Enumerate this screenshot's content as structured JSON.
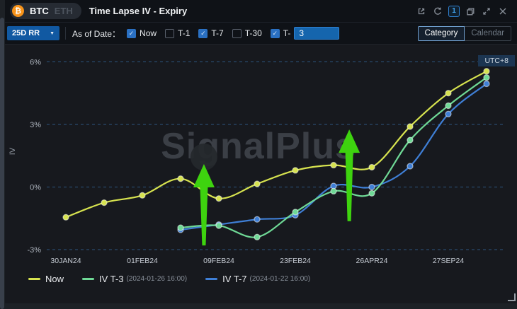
{
  "header": {
    "bitcoin_glyph": "₿",
    "asset_tabs": [
      {
        "label": "BTC",
        "active": true
      },
      {
        "label": "ETH",
        "active": false
      }
    ],
    "title": "Time Lapse IV - Expiry",
    "view_badge": "1"
  },
  "controls": {
    "metric_dropdown": {
      "value": "25D RR"
    },
    "as_of_label": "As of Date：",
    "checkboxes": [
      {
        "label": "Now",
        "checked": true
      },
      {
        "label": "T-1",
        "checked": false
      },
      {
        "label": "T-7",
        "checked": true
      },
      {
        "label": "T-30",
        "checked": false
      },
      {
        "label": "T-",
        "checked": true,
        "input_value": "3"
      }
    ],
    "view_toggle": [
      {
        "label": "Category",
        "active": true
      },
      {
        "label": "Calendar",
        "active": false
      }
    ]
  },
  "chart": {
    "timezone_badge": "UTC+8",
    "watermark": "SignalPlus",
    "y_axis_title": "IV"
  },
  "colors": {
    "accent_blue": "#1565ad",
    "checkbox_blue": "#2a70c2",
    "series_now": "#d7e34f",
    "series_t3": "#6fd996",
    "series_t7": "#3f7fd6",
    "arrow_green": "#3ed30f",
    "grid_blue": "#2c5580",
    "bitcoin_orange": "#f7931a"
  },
  "chart_data": {
    "type": "line",
    "title": "Time Lapse IV - Expiry",
    "ylabel": "IV",
    "unit": "%",
    "grid": true,
    "legend_position": "bottom-left",
    "ylim": [
      -3.4,
      6.4
    ],
    "y_ticks": [
      {
        "label": "6%",
        "value": 6
      },
      {
        "label": "3%",
        "value": 3
      },
      {
        "label": "0%",
        "value": 0
      },
      {
        "label": "-3%",
        "value": -3
      }
    ],
    "num_points": 12,
    "x_ticks": [
      {
        "label": "30JAN24",
        "index": 0
      },
      {
        "label": "01FEB24",
        "index": 2
      },
      {
        "label": "09FEB24",
        "index": 4
      },
      {
        "label": "23FEB24",
        "index": 6
      },
      {
        "label": "26APR24",
        "index": 8
      },
      {
        "label": "27SEP24",
        "index": 10
      }
    ],
    "grid_color": "#2c5580",
    "arrow_color": "#3ed30f",
    "series": [
      {
        "name": "Now",
        "note": "",
        "color": "#d7e34f",
        "start_index": 0,
        "values": [
          -1.45,
          -0.75,
          -0.4,
          0.4,
          -0.55,
          0.15,
          0.8,
          1.05,
          0.95,
          2.9,
          4.5,
          5.55
        ]
      },
      {
        "name": "IV T-3",
        "note": "(2024-01-26 16:00)",
        "color": "#6fd996",
        "start_index": 3,
        "values": [
          -1.95,
          -1.85,
          -2.4,
          -1.2,
          -0.2,
          -0.3,
          2.25,
          3.9,
          5.25
        ]
      },
      {
        "name": "IV T-7",
        "note": "(2024-01-22 16:00)",
        "color": "#3f7fd6",
        "start_index": 3,
        "values": [
          -2.05,
          -1.8,
          -1.55,
          -1.35,
          0.05,
          0,
          1.0,
          3.5,
          4.95
        ]
      }
    ],
    "annotations": {
      "halo": {
        "x": 3.61,
        "y": 1.44,
        "r": 19
      },
      "arrows": [
        {
          "x": 3.61,
          "tip": 1.1,
          "base": -2.8
        },
        {
          "x": 7.41,
          "tip": 2.76,
          "base": -1.64
        }
      ]
    }
  }
}
